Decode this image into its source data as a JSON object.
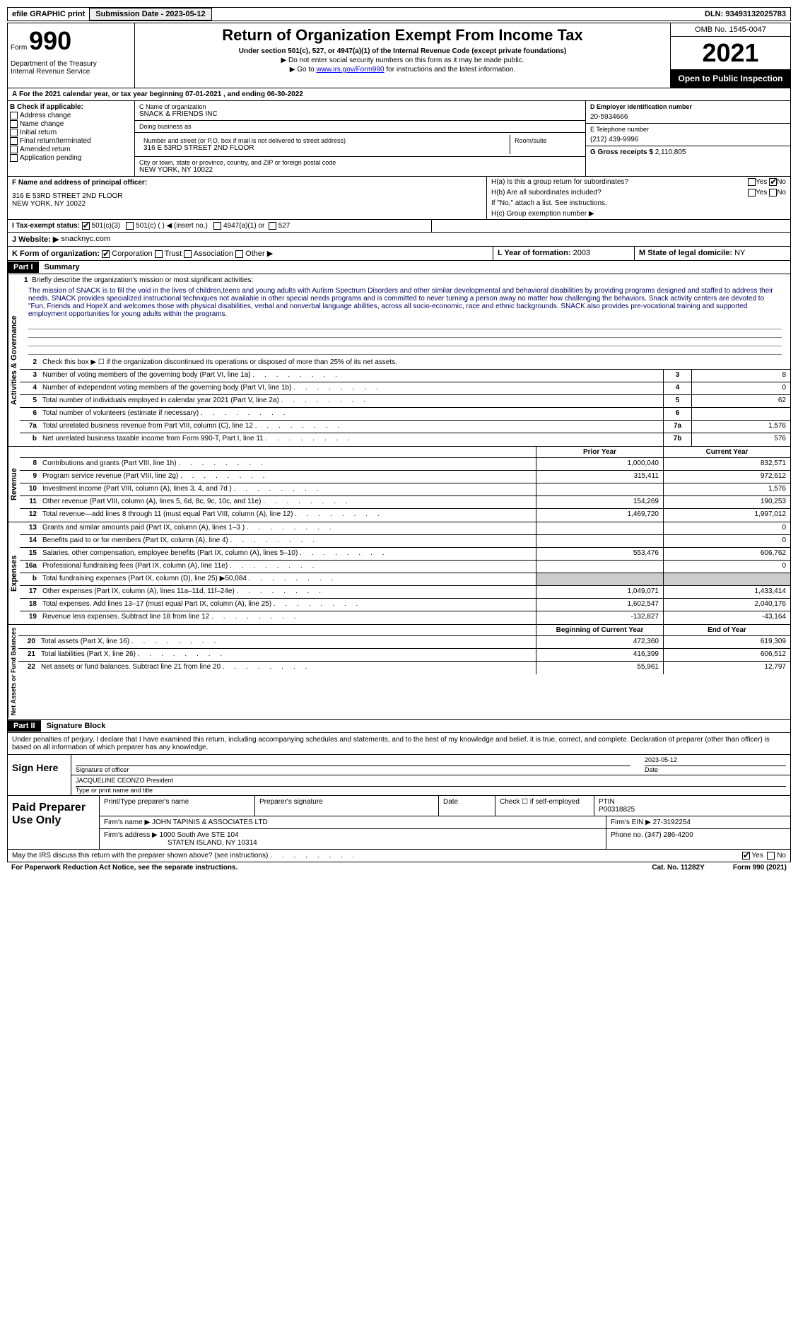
{
  "top_bar": {
    "efile": "efile GRAPHIC print",
    "submission_label": "Submission Date - 2023-05-12",
    "dln": "DLN: 93493132025783"
  },
  "header": {
    "form_word": "Form",
    "form_number": "990",
    "dept": "Department of the Treasury\nInternal Revenue Service",
    "title": "Return of Organization Exempt From Income Tax",
    "subtitle": "Under section 501(c), 527, or 4947(a)(1) of the Internal Revenue Code (except private foundations)",
    "note1": "▶ Do not enter social security numbers on this form as it may be made public.",
    "note2_prefix": "▶ Go to ",
    "note2_link": "www.irs.gov/Form990",
    "note2_suffix": " for instructions and the latest information.",
    "omb": "OMB No. 1545-0047",
    "year": "2021",
    "inspection": "Open to Public Inspection"
  },
  "section_a": "For the 2021 calendar year, or tax year beginning 07-01-2021   , and ending 06-30-2022",
  "col_b": {
    "header": "B Check if applicable:",
    "items": [
      "Address change",
      "Name change",
      "Initial return",
      "Final return/terminated",
      "Amended return",
      "Application pending"
    ]
  },
  "col_c": {
    "name_label": "C Name of organization",
    "name": "SNACK & FRIENDS INC",
    "dba_label": "Doing business as",
    "dba": "",
    "addr_label": "Number and street (or P.O. box if mail is not delivered to street address)",
    "addr": "316 E 53RD STREET 2ND FLOOR",
    "room_label": "Room/suite",
    "city_label": "City or town, state or province, country, and ZIP or foreign postal code",
    "city": "NEW YORK, NY  10022"
  },
  "col_d": {
    "ein_label": "D Employer identification number",
    "ein": "20-5934666",
    "phone_label": "E Telephone number",
    "phone": "(212) 439-9996",
    "receipts_label": "G Gross receipts $",
    "receipts": "2,110,805"
  },
  "principal": {
    "label": "F  Name and address of principal officer:",
    "name": "",
    "addr1": "316 E 53RD STREET 2ND FLOOR",
    "addr2": "NEW YORK, NY  10022"
  },
  "section_h": {
    "ha": "H(a)  Is this a group return for subordinates?",
    "ha_yes": "Yes",
    "ha_no": "No",
    "hb": "H(b)  Are all subordinates included?",
    "hb_yes": "Yes",
    "hb_no": "No",
    "hb_note": "If \"No,\" attach a list. See instructions.",
    "hc": "H(c)  Group exemption number ▶"
  },
  "section_i": {
    "label": "I   Tax-exempt status:",
    "opt1": "501(c)(3)",
    "opt2": "501(c) (   ) ◀ (insert no.)",
    "opt3": "4947(a)(1) or",
    "opt4": "527"
  },
  "section_j": {
    "label": "J  Website: ▶",
    "value": "snacknyc.com"
  },
  "section_k": {
    "label": "K Form of organization:",
    "opts": [
      "Corporation",
      "Trust",
      "Association",
      "Other ▶"
    ],
    "l_label": "L Year of formation:",
    "l_value": "2003",
    "m_label": "M State of legal domicile:",
    "m_value": "NY"
  },
  "part1": {
    "header": "Part I",
    "title": "Summary",
    "line1_label": "Briefly describe the organization's mission or most significant activities:",
    "mission": "The mission of SNACK is to fill the void in the lives of children,teens and young adults with Autism Spectrum Disorders and other similar developmental and behavioral disabilities by providing programs designed and staffed to address their needs. SNACK provides specialized instructional techniques not available in other special needs programs and is committed to never turning a person away no matter how challenging the behaviors. Snack activity centers are devoted to \"Fun, Friends and HopeX and welcomes those with physical disabilities, verbal and nonverbal language abilities, across all socio-economic, race and ethnic backgrounds. SNACK also provides pre-vocational training and supported employment opportunities for young adults within the programs.",
    "line2": "Check this box ▶ ☐ if the organization discontinued its operations or disposed of more than 25% of its net assets.",
    "governance": {
      "side": "Activities & Governance",
      "rows": [
        {
          "n": "3",
          "t": "Number of voting members of the governing body (Part VI, line 1a)",
          "box": "3",
          "v": "8"
        },
        {
          "n": "4",
          "t": "Number of independent voting members of the governing body (Part VI, line 1b)",
          "box": "4",
          "v": "0"
        },
        {
          "n": "5",
          "t": "Total number of individuals employed in calendar year 2021 (Part V, line 2a)",
          "box": "5",
          "v": "62"
        },
        {
          "n": "6",
          "t": "Total number of volunteers (estimate if necessary)",
          "box": "6",
          "v": ""
        },
        {
          "n": "7a",
          "t": "Total unrelated business revenue from Part VIII, column (C), line 12",
          "box": "7a",
          "v": "1,576"
        },
        {
          "n": "b",
          "t": "Net unrelated business taxable income from Form 990-T, Part I, line 11",
          "box": "7b",
          "v": "576"
        }
      ]
    },
    "prior_label": "Prior Year",
    "current_label": "Current Year",
    "revenue": {
      "side": "Revenue",
      "rows": [
        {
          "n": "8",
          "t": "Contributions and grants (Part VIII, line 1h)",
          "p": "1,000,040",
          "c": "832,571"
        },
        {
          "n": "9",
          "t": "Program service revenue (Part VIII, line 2g)",
          "p": "315,411",
          "c": "972,612"
        },
        {
          "n": "10",
          "t": "Investment income (Part VIII, column (A), lines 3, 4, and 7d )",
          "p": "",
          "c": "1,576"
        },
        {
          "n": "11",
          "t": "Other revenue (Part VIII, column (A), lines 5, 6d, 8c, 9c, 10c, and 11e)",
          "p": "154,269",
          "c": "190,253"
        },
        {
          "n": "12",
          "t": "Total revenue—add lines 8 through 11 (must equal Part VIII, column (A), line 12)",
          "p": "1,469,720",
          "c": "1,997,012"
        }
      ]
    },
    "expenses": {
      "side": "Expenses",
      "rows": [
        {
          "n": "13",
          "t": "Grants and similar amounts paid (Part IX, column (A), lines 1–3 )",
          "p": "",
          "c": "0"
        },
        {
          "n": "14",
          "t": "Benefits paid to or for members (Part IX, column (A), line 4)",
          "p": "",
          "c": "0"
        },
        {
          "n": "15",
          "t": "Salaries, other compensation, employee benefits (Part IX, column (A), lines 5–10)",
          "p": "553,476",
          "c": "606,762"
        },
        {
          "n": "16a",
          "t": "Professional fundraising fees (Part IX, column (A), line 11e)",
          "p": "",
          "c": "0"
        },
        {
          "n": "b",
          "t": "Total fundraising expenses (Part IX, column (D), line 25) ▶50,084",
          "p": "gray",
          "c": "gray"
        },
        {
          "n": "17",
          "t": "Other expenses (Part IX, column (A), lines 11a–11d, 11f–24e)",
          "p": "1,049,071",
          "c": "1,433,414"
        },
        {
          "n": "18",
          "t": "Total expenses. Add lines 13–17 (must equal Part IX, column (A), line 25)",
          "p": "1,602,547",
          "c": "2,040,176"
        },
        {
          "n": "19",
          "t": "Revenue less expenses. Subtract line 18 from line 12",
          "p": "-132,827",
          "c": "-43,164"
        }
      ]
    },
    "begin_label": "Beginning of Current Year",
    "end_label": "End of Year",
    "netassets": {
      "side": "Net Assets or Fund Balances",
      "rows": [
        {
          "n": "20",
          "t": "Total assets (Part X, line 16)",
          "p": "472,360",
          "c": "619,309"
        },
        {
          "n": "21",
          "t": "Total liabilities (Part X, line 26)",
          "p": "416,399",
          "c": "606,512"
        },
        {
          "n": "22",
          "t": "Net assets or fund balances. Subtract line 21 from line 20",
          "p": "55,961",
          "c": "12,797"
        }
      ]
    }
  },
  "part2": {
    "header": "Part II",
    "title": "Signature Block",
    "declaration": "Under penalties of perjury, I declare that I have examined this return, including accompanying schedules and statements, and to the best of my knowledge and belief, it is true, correct, and complete. Declaration of preparer (other than officer) is based on all information of which preparer has any knowledge.",
    "sign_here": "Sign Here",
    "sig_officer": "Signature of officer",
    "sig_date": "Date",
    "sig_date_val": "2023-05-12",
    "officer_name": "JACQUELINE CEONZO  President",
    "type_name": "Type or print name and title",
    "paid_label": "Paid Preparer Use Only",
    "prep_name_label": "Print/Type preparer's name",
    "prep_sig_label": "Preparer's signature",
    "prep_date_label": "Date",
    "prep_check": "Check ☐ if self-employed",
    "ptin_label": "PTIN",
    "ptin": "P00318825",
    "firm_name_label": "Firm's name    ▶",
    "firm_name": "JOHN TAPINIS & ASSOCIATES LTD",
    "firm_ein_label": "Firm's EIN ▶",
    "firm_ein": "27-3192254",
    "firm_addr_label": "Firm's address ▶",
    "firm_addr1": "1000 South Ave STE 104",
    "firm_addr2": "STATEN ISLAND, NY  10314",
    "firm_phone_label": "Phone no.",
    "firm_phone": "(347) 286-4200",
    "discuss": "May the IRS discuss this return with the preparer shown above? (see instructions)",
    "discuss_yes": "Yes",
    "discuss_no": "No"
  },
  "footer": {
    "pra": "For Paperwork Reduction Act Notice, see the separate instructions.",
    "cat": "Cat. No. 11282Y",
    "form": "Form 990 (2021)"
  },
  "colors": {
    "link": "#0000ff",
    "mission": "#003366"
  }
}
